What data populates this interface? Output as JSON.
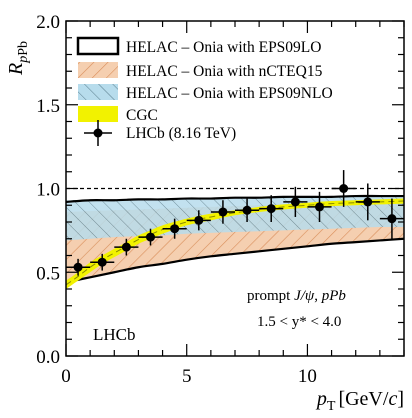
{
  "chart_data": {
    "type": "line",
    "xlabel": "p_T [GeV/c]",
    "xlabel_parts": {
      "main": "p",
      "sub": "T",
      "unit_prefix": "[GeV/",
      "unit_italic": "c",
      "unit_suffix": "]"
    },
    "ylabel": "R_pPb",
    "ylabel_parts": {
      "main": "R",
      "sub1": "p",
      "sub2": "Pb"
    },
    "xlim": [
      0,
      14
    ],
    "ylim": [
      0,
      2
    ],
    "x_ticks": [
      0,
      5,
      10
    ],
    "x_tick_labels": [
      "0",
      "5",
      "10"
    ],
    "y_ticks": [
      0,
      0.5,
      1.0,
      1.5,
      2.0
    ],
    "y_tick_labels": [
      "0.0",
      "0.5",
      "1.0",
      "1.5",
      "2.0"
    ],
    "reference_line": 1.0,
    "legend": {
      "placement": "top-left",
      "entries": [
        {
          "id": "eps09lo",
          "label": "HELAC – Onia with EPS09LO"
        },
        {
          "id": "ncteq15",
          "label": "HELAC – Onia with nCTEQ15"
        },
        {
          "id": "eps09nlo",
          "label": "HELAC – Onia with EPS09NLO"
        },
        {
          "id": "cgc",
          "label": "CGC"
        },
        {
          "id": "lhcb",
          "label": "LHCb (8.16 TeV)"
        }
      ]
    },
    "annotations": {
      "process_prefix": "prompt ",
      "process_particle": "J/ψ",
      "process_sep": ", ",
      "process_system": "pPb",
      "rapidity": "1.5 < y* < 4.0",
      "experiment": "LHCb"
    },
    "colors": {
      "eps09lo_line": "#000000",
      "ncteq15_fill": "#f5cfb0",
      "ncteq15_hatch": "#d98e5a",
      "eps09nlo_fill": "#b7dcec",
      "eps09nlo_hatch": "#5a7d8c",
      "cgc": "#f2f200",
      "data": "#000000"
    },
    "series": [
      {
        "id": "eps09lo",
        "name": "HELAC – Onia with EPS09LO",
        "style": "band-outline",
        "x": [
          0,
          1,
          2,
          3,
          4,
          5,
          6,
          7,
          8,
          9,
          10,
          11,
          12,
          13,
          14
        ],
        "upper": [
          0.92,
          0.93,
          0.93,
          0.935,
          0.935,
          0.94,
          0.94,
          0.945,
          0.945,
          0.95,
          0.95,
          0.95,
          0.955,
          0.955,
          0.955
        ],
        "lower": [
          0.44,
          0.47,
          0.5,
          0.53,
          0.55,
          0.575,
          0.595,
          0.61,
          0.625,
          0.64,
          0.655,
          0.67,
          0.68,
          0.69,
          0.7
        ]
      },
      {
        "id": "ncteq15",
        "name": "HELAC – Onia with nCTEQ15",
        "style": "hatched-band",
        "x": [
          0,
          1,
          2,
          3,
          4,
          5,
          6,
          7,
          8,
          9,
          10,
          11,
          12,
          13,
          14
        ],
        "upper": [
          0.86,
          0.865,
          0.87,
          0.875,
          0.88,
          0.885,
          0.89,
          0.895,
          0.9,
          0.905,
          0.91,
          0.91,
          0.915,
          0.915,
          0.92
        ],
        "lower": [
          0.44,
          0.47,
          0.5,
          0.53,
          0.55,
          0.575,
          0.595,
          0.61,
          0.625,
          0.64,
          0.655,
          0.67,
          0.68,
          0.69,
          0.7
        ]
      },
      {
        "id": "eps09nlo",
        "name": "HELAC – Onia with EPS09NLO",
        "style": "hatched-band",
        "x": [
          0,
          1,
          2,
          3,
          4,
          5,
          6,
          7,
          8,
          9,
          10,
          11,
          12,
          13,
          14
        ],
        "upper": [
          0.93,
          0.93,
          0.935,
          0.935,
          0.94,
          0.94,
          0.945,
          0.945,
          0.95,
          0.95,
          0.95,
          0.955,
          0.955,
          0.96,
          0.96
        ],
        "lower": [
          0.69,
          0.7,
          0.71,
          0.715,
          0.72,
          0.73,
          0.735,
          0.74,
          0.745,
          0.75,
          0.755,
          0.76,
          0.765,
          0.77,
          0.77
        ]
      },
      {
        "id": "cgc",
        "name": "CGC",
        "style": "band",
        "x": [
          0,
          0.5,
          1,
          1.5,
          2,
          2.5,
          3,
          3.5,
          4,
          5,
          6,
          7,
          8,
          9,
          10,
          11,
          12,
          13,
          14
        ],
        "upper": [
          0.45,
          0.5,
          0.56,
          0.6,
          0.64,
          0.68,
          0.72,
          0.75,
          0.78,
          0.82,
          0.85,
          0.87,
          0.89,
          0.905,
          0.915,
          0.925,
          0.93,
          0.935,
          0.94
        ],
        "lower": [
          0.4,
          0.45,
          0.5,
          0.55,
          0.59,
          0.63,
          0.67,
          0.7,
          0.73,
          0.78,
          0.81,
          0.84,
          0.86,
          0.875,
          0.885,
          0.895,
          0.9,
          0.905,
          0.91
        ]
      },
      {
        "id": "lhcb",
        "name": "LHCb (8.16 TeV)",
        "style": "points",
        "x": [
          0.5,
          1.5,
          2.5,
          3.5,
          4.5,
          5.5,
          6.5,
          7.5,
          8.5,
          9.5,
          10.5,
          11.5,
          12.5,
          13.5
        ],
        "xerr": [
          0.5,
          0.5,
          0.5,
          0.5,
          0.5,
          0.5,
          0.5,
          0.5,
          0.5,
          0.5,
          0.5,
          0.5,
          0.5,
          0.5
        ],
        "y": [
          0.53,
          0.56,
          0.65,
          0.71,
          0.76,
          0.81,
          0.86,
          0.87,
          0.88,
          0.92,
          0.89,
          1.0,
          0.92,
          0.82
        ],
        "yerr": [
          0.05,
          0.05,
          0.05,
          0.05,
          0.06,
          0.06,
          0.07,
          0.07,
          0.08,
          0.09,
          0.09,
          0.11,
          0.11,
          0.12
        ]
      }
    ]
  }
}
